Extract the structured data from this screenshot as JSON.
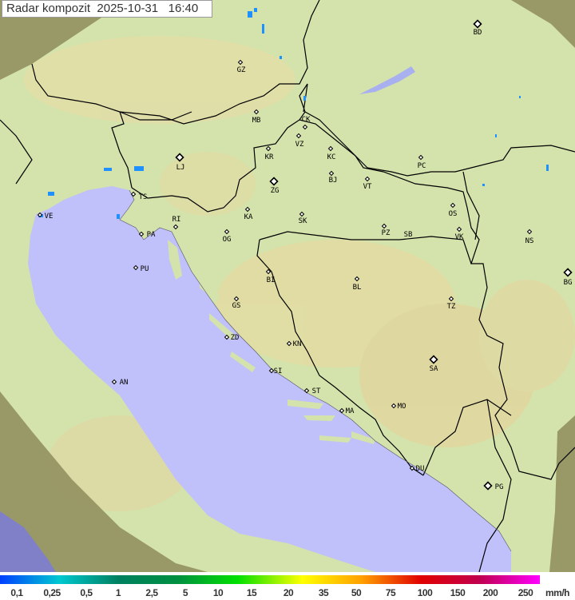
{
  "header": {
    "title": "Radar kompozit",
    "date": "2025-10-31",
    "time": "16:40"
  },
  "map": {
    "colors": {
      "land": "#d4e2ab",
      "land_outside_coverage": "#8e8c5c",
      "sea": "#c0c0fa",
      "sea_outside_coverage": "#8080c8",
      "border": "#000000",
      "echo": "#1e90ff"
    },
    "cities": [
      "BD",
      "GZ",
      "MB",
      "CK",
      "VZ",
      "KR",
      "KC",
      "LJ",
      "ZG",
      "BJ",
      "VT",
      "PC",
      "TS",
      "VE",
      "KA",
      "SK",
      "RI",
      "PA",
      "OG",
      "PZ",
      "SB",
      "OS",
      "VK",
      "NS",
      "PU",
      "BI",
      "BL",
      "BG",
      "TZ",
      "GS",
      "ZD",
      "KN",
      "SI",
      "SA",
      "AN",
      "ST",
      "MA",
      "MO",
      "DU",
      "PG"
    ]
  },
  "legend": {
    "unit": "mm/h",
    "labels": [
      "0,1",
      "0,25",
      "0,5",
      "1",
      "2,5",
      "5",
      "10",
      "15",
      "20",
      "35",
      "50",
      "75",
      "100",
      "150",
      "200",
      "250"
    ],
    "colors": [
      "#0040ff",
      "#00c8d0",
      "#008060",
      "#009040",
      "#00e000",
      "#ffff00",
      "#ffa000",
      "#e00000",
      "#c00050",
      "#ff00ff"
    ]
  }
}
